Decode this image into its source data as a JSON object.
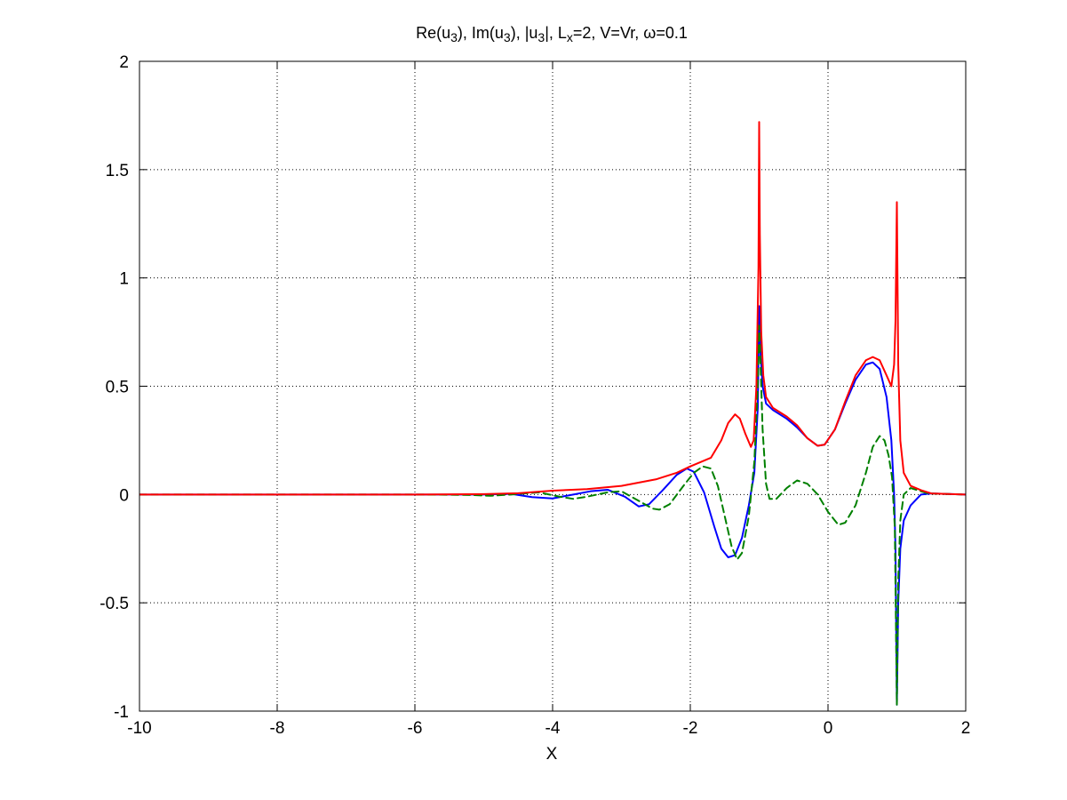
{
  "chart_data": {
    "type": "line",
    "title": "Re(u3), Im(u3), |u3|, Lx=2,  V=Vr, ω=0.1",
    "title_parts": [
      {
        "text": "Re(u"
      },
      {
        "text": "3",
        "sub": true
      },
      {
        "text": "), Im(u"
      },
      {
        "text": "3",
        "sub": true
      },
      {
        "text": "), |u"
      },
      {
        "text": "3",
        "sub": true
      },
      {
        "text": "|, L"
      },
      {
        "text": "x",
        "sub": true
      },
      {
        "text": "=2,  V=Vr, ω=0.1"
      }
    ],
    "xlabel": "X",
    "ylabel": "",
    "xlim": [
      -10,
      2
    ],
    "ylim": [
      -1,
      2
    ],
    "xticks": [
      -10,
      -8,
      -6,
      -4,
      -2,
      0,
      2
    ],
    "yticks": [
      -1,
      -0.5,
      0,
      0.5,
      1,
      1.5,
      2
    ],
    "xtick_labels": [
      "-10",
      "-8",
      "-6",
      "-4",
      "-2",
      "0",
      "2"
    ],
    "ytick_labels": [
      "-1",
      "-0.5",
      "0",
      "0.5",
      "1",
      "1.5",
      "2"
    ],
    "grid": true,
    "series": [
      {
        "color": "#0000ff",
        "dash": "solid",
        "points": [
          [
            -10,
            0
          ],
          [
            -6,
            0
          ],
          [
            -5,
            0
          ],
          [
            -4.6,
            0.003
          ],
          [
            -4.3,
            -0.012
          ],
          [
            -4.0,
            -0.018
          ],
          [
            -3.7,
            0.0
          ],
          [
            -3.45,
            0.015
          ],
          [
            -3.2,
            0.022
          ],
          [
            -2.95,
            -0.01
          ],
          [
            -2.75,
            -0.055
          ],
          [
            -2.6,
            -0.045
          ],
          [
            -2.4,
            0.02
          ],
          [
            -2.2,
            0.09
          ],
          [
            -2.05,
            0.12
          ],
          [
            -1.95,
            0.105
          ],
          [
            -1.8,
            0.01
          ],
          [
            -1.65,
            -0.15
          ],
          [
            -1.55,
            -0.25
          ],
          [
            -1.45,
            -0.29
          ],
          [
            -1.35,
            -0.28
          ],
          [
            -1.25,
            -0.2
          ],
          [
            -1.15,
            -0.05
          ],
          [
            -1.07,
            0.1
          ],
          [
            -1.02,
            0.4
          ],
          [
            -1.0,
            0.87
          ],
          [
            -0.98,
            0.65
          ],
          [
            -0.95,
            0.5
          ],
          [
            -0.9,
            0.42
          ],
          [
            -0.8,
            0.39
          ],
          [
            -0.7,
            0.37
          ],
          [
            -0.6,
            0.35
          ],
          [
            -0.45,
            0.31
          ],
          [
            -0.3,
            0.26
          ],
          [
            -0.15,
            0.225
          ],
          [
            -0.05,
            0.23
          ],
          [
            0.1,
            0.3
          ],
          [
            0.25,
            0.42
          ],
          [
            0.4,
            0.53
          ],
          [
            0.55,
            0.6
          ],
          [
            0.65,
            0.61
          ],
          [
            0.75,
            0.58
          ],
          [
            0.85,
            0.45
          ],
          [
            0.92,
            0.25
          ],
          [
            0.96,
            0.0
          ],
          [
            0.98,
            -0.25
          ],
          [
            1.0,
            -0.97
          ],
          [
            1.02,
            -0.5
          ],
          [
            1.05,
            -0.25
          ],
          [
            1.1,
            -0.12
          ],
          [
            1.2,
            -0.05
          ],
          [
            1.35,
            0.0
          ],
          [
            1.5,
            0.005
          ],
          [
            2,
            0
          ]
        ]
      },
      {
        "color": "#008000",
        "dash": "dashed",
        "points": [
          [
            -10,
            0
          ],
          [
            -6,
            0
          ],
          [
            -5.2,
            -0.002
          ],
          [
            -4.9,
            -0.006
          ],
          [
            -4.6,
            0.0
          ],
          [
            -4.2,
            0.01
          ],
          [
            -3.9,
            -0.01
          ],
          [
            -3.7,
            -0.02
          ],
          [
            -3.5,
            -0.01
          ],
          [
            -3.2,
            0.01
          ],
          [
            -3.0,
            0.015
          ],
          [
            -2.8,
            -0.02
          ],
          [
            -2.55,
            -0.065
          ],
          [
            -2.45,
            -0.07
          ],
          [
            -2.3,
            -0.045
          ],
          [
            -2.1,
            0.04
          ],
          [
            -1.95,
            0.1
          ],
          [
            -1.82,
            0.13
          ],
          [
            -1.7,
            0.12
          ],
          [
            -1.6,
            0.04
          ],
          [
            -1.5,
            -0.1
          ],
          [
            -1.4,
            -0.24
          ],
          [
            -1.32,
            -0.3
          ],
          [
            -1.25,
            -0.27
          ],
          [
            -1.15,
            -0.1
          ],
          [
            -1.07,
            0.15
          ],
          [
            -1.02,
            0.5
          ],
          [
            -1.0,
            0.78
          ],
          [
            -0.98,
            0.6
          ],
          [
            -0.95,
            0.3
          ],
          [
            -0.9,
            0.05
          ],
          [
            -0.85,
            -0.02
          ],
          [
            -0.75,
            -0.02
          ],
          [
            -0.6,
            0.03
          ],
          [
            -0.45,
            0.065
          ],
          [
            -0.3,
            0.05
          ],
          [
            -0.15,
            0.0
          ],
          [
            0.0,
            -0.08
          ],
          [
            0.15,
            -0.14
          ],
          [
            0.25,
            -0.13
          ],
          [
            0.4,
            -0.05
          ],
          [
            0.55,
            0.1
          ],
          [
            0.65,
            0.22
          ],
          [
            0.75,
            0.27
          ],
          [
            0.82,
            0.25
          ],
          [
            0.88,
            0.18
          ],
          [
            0.93,
            0.08
          ],
          [
            0.97,
            -0.15
          ],
          [
            1.0,
            -0.97
          ],
          [
            1.02,
            -0.4
          ],
          [
            1.05,
            -0.12
          ],
          [
            1.1,
            0.0
          ],
          [
            1.2,
            0.03
          ],
          [
            1.3,
            0.02
          ],
          [
            1.45,
            0.005
          ],
          [
            2,
            0
          ]
        ]
      },
      {
        "color": "#ff0000",
        "dash": "solid",
        "points": [
          [
            -10,
            0
          ],
          [
            -6,
            0
          ],
          [
            -5,
            0.002
          ],
          [
            -4.5,
            0.006
          ],
          [
            -4.0,
            0.018
          ],
          [
            -3.5,
            0.025
          ],
          [
            -3.0,
            0.04
          ],
          [
            -2.5,
            0.07
          ],
          [
            -2.2,
            0.1
          ],
          [
            -2.0,
            0.13
          ],
          [
            -1.85,
            0.15
          ],
          [
            -1.7,
            0.17
          ],
          [
            -1.55,
            0.25
          ],
          [
            -1.45,
            0.33
          ],
          [
            -1.35,
            0.37
          ],
          [
            -1.28,
            0.35
          ],
          [
            -1.2,
            0.28
          ],
          [
            -1.12,
            0.22
          ],
          [
            -1.08,
            0.25
          ],
          [
            -1.04,
            0.5
          ],
          [
            -1.01,
            1.05
          ],
          [
            -1.0,
            1.72
          ],
          [
            -0.99,
            1.2
          ],
          [
            -0.97,
            0.75
          ],
          [
            -0.94,
            0.55
          ],
          [
            -0.9,
            0.45
          ],
          [
            -0.8,
            0.4
          ],
          [
            -0.7,
            0.38
          ],
          [
            -0.6,
            0.36
          ],
          [
            -0.45,
            0.32
          ],
          [
            -0.3,
            0.26
          ],
          [
            -0.15,
            0.225
          ],
          [
            -0.05,
            0.23
          ],
          [
            0.1,
            0.3
          ],
          [
            0.25,
            0.43
          ],
          [
            0.4,
            0.55
          ],
          [
            0.55,
            0.62
          ],
          [
            0.65,
            0.635
          ],
          [
            0.75,
            0.62
          ],
          [
            0.85,
            0.55
          ],
          [
            0.92,
            0.5
          ],
          [
            0.96,
            0.6
          ],
          [
            0.98,
            0.8
          ],
          [
            1.0,
            1.35
          ],
          [
            1.02,
            0.6
          ],
          [
            1.05,
            0.25
          ],
          [
            1.1,
            0.1
          ],
          [
            1.2,
            0.04
          ],
          [
            1.35,
            0.02
          ],
          [
            1.5,
            0.005
          ],
          [
            2,
            0
          ]
        ]
      }
    ]
  }
}
